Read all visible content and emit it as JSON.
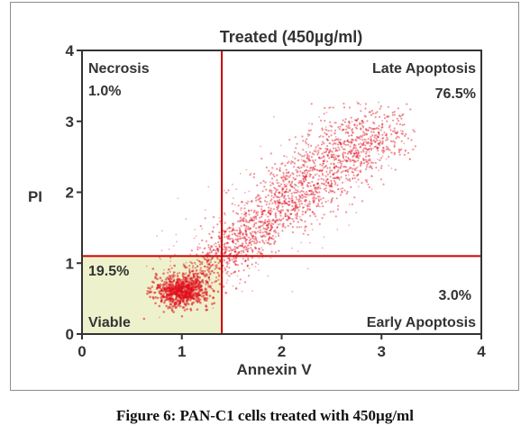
{
  "chart_data": {
    "type": "scatter",
    "title": "Treated (450µg/ml)",
    "xlabel": "Annexin V",
    "ylabel": "PI",
    "xlim": [
      0,
      4
    ],
    "ylim": [
      0,
      4
    ],
    "xticks": [
      "0",
      "1",
      "2",
      "3",
      "4"
    ],
    "yticks": [
      "0",
      "1",
      "2",
      "3",
      "4"
    ],
    "gates": {
      "x": 1.4,
      "y": 1.1
    },
    "quadrants": [
      {
        "name": "Necrosis",
        "percent": "1.0%",
        "position": "top-left"
      },
      {
        "name": "Late Apoptosis",
        "percent": "76.5%",
        "position": "top-right"
      },
      {
        "name": "Viable",
        "percent": "19.5%",
        "position": "bottom-left"
      },
      {
        "name": "Early Apoptosis",
        "percent": "3.0%",
        "position": "bottom-right"
      }
    ],
    "population": {
      "density_peak": [
        1.0,
        0.6
      ],
      "ridge_end": [
        3.0,
        3.0
      ],
      "upper_extent": [
        3.1,
        3.1
      ]
    },
    "colors": {
      "dots": "#e0101e",
      "gate": "#cc0000",
      "viable_fill": "#eef2cc",
      "axis": "#333333"
    }
  },
  "caption": "Figure 6: PAN-C1 cells treated with 450µg/ml"
}
